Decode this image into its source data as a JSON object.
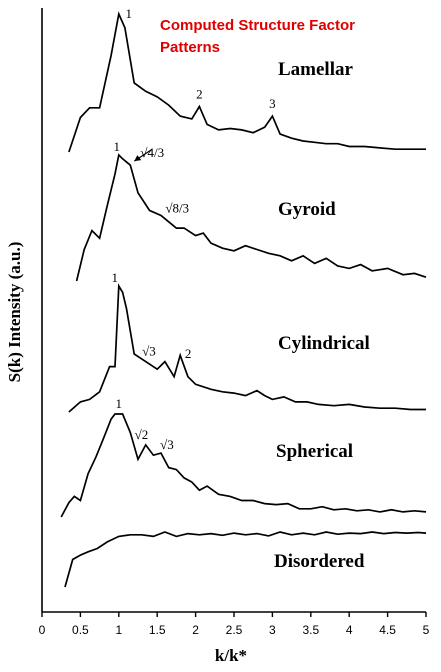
{
  "chart_data": {
    "type": "line",
    "title_lines": [
      "Computed Structure Factor",
      "Patterns"
    ],
    "title_color": "#e00000",
    "xlabel": "k/k*",
    "ylabel": "S(k) Intensity (a.u.)",
    "xlim": [
      0,
      5
    ],
    "x_ticks": [
      "0",
      "0.5",
      "1",
      "1.5",
      "2",
      "2.5",
      "3",
      "3.5",
      "4",
      "4.5",
      "5"
    ],
    "line_color": "#000000",
    "series": [
      {
        "name": "Lamellar",
        "baseline_rank": 1,
        "x": [
          0.35,
          0.5,
          0.62,
          0.75,
          0.9,
          1.0,
          1.08,
          1.2,
          1.35,
          1.5,
          1.65,
          1.8,
          1.95,
          2.05,
          2.15,
          2.3,
          2.45,
          2.6,
          2.75,
          2.9,
          3.0,
          3.1,
          3.25,
          3.4,
          3.55,
          3.7,
          3.85,
          4.0,
          4.2,
          4.4,
          4.6,
          4.8,
          5.0
        ],
        "y": [
          0.0,
          0.25,
          0.32,
          0.32,
          0.7,
          1.0,
          0.9,
          0.5,
          0.44,
          0.4,
          0.34,
          0.26,
          0.24,
          0.33,
          0.2,
          0.16,
          0.17,
          0.16,
          0.14,
          0.18,
          0.26,
          0.13,
          0.1,
          0.08,
          0.07,
          0.06,
          0.06,
          0.04,
          0.04,
          0.03,
          0.02,
          0.02,
          0.02
        ],
        "peak_labels": [
          {
            "text": "1",
            "x": 1.0
          },
          {
            "text": "2",
            "x": 2.05
          },
          {
            "text": "3",
            "x": 3.0
          }
        ]
      },
      {
        "name": "Gyroid",
        "baseline_rank": 2,
        "x": [
          0.45,
          0.55,
          0.65,
          0.75,
          0.85,
          0.95,
          1.0,
          1.05,
          1.15,
          1.25,
          1.4,
          1.55,
          1.65,
          1.75,
          1.85,
          2.0,
          2.1,
          2.2,
          2.35,
          2.5,
          2.65,
          2.8,
          2.95,
          3.1,
          3.25,
          3.4,
          3.55,
          3.7,
          3.85,
          4.0,
          4.15,
          4.3,
          4.5,
          4.7,
          4.85,
          5.0
        ],
        "y": [
          0.0,
          0.25,
          0.4,
          0.34,
          0.6,
          0.85,
          1.0,
          0.97,
          0.92,
          0.7,
          0.56,
          0.52,
          0.47,
          0.42,
          0.42,
          0.36,
          0.38,
          0.3,
          0.26,
          0.24,
          0.28,
          0.25,
          0.22,
          0.2,
          0.16,
          0.2,
          0.14,
          0.18,
          0.12,
          0.1,
          0.13,
          0.08,
          0.1,
          0.05,
          0.06,
          0.03
        ],
        "peak_labels": [
          {
            "text": "1",
            "x": 1.0
          },
          {
            "text": "√4/3",
            "x": 1.15
          },
          {
            "text": "√8/3",
            "x": 1.63
          }
        ]
      },
      {
        "name": "Cylindrical",
        "baseline_rank": 3,
        "x": [
          0.35,
          0.5,
          0.62,
          0.75,
          0.88,
          0.95,
          1.0,
          1.05,
          1.1,
          1.2,
          1.35,
          1.5,
          1.6,
          1.72,
          1.8,
          1.9,
          2.0,
          2.2,
          2.35,
          2.5,
          2.65,
          2.8,
          2.9,
          3.0,
          3.15,
          3.3,
          3.45,
          3.6,
          3.8,
          4.0,
          4.2,
          4.4,
          4.6,
          4.8,
          5.0
        ],
        "y": [
          0.0,
          0.08,
          0.1,
          0.16,
          0.36,
          0.36,
          1.0,
          0.95,
          0.82,
          0.46,
          0.4,
          0.34,
          0.4,
          0.28,
          0.45,
          0.28,
          0.22,
          0.18,
          0.16,
          0.15,
          0.13,
          0.17,
          0.13,
          0.1,
          0.12,
          0.08,
          0.08,
          0.06,
          0.05,
          0.06,
          0.04,
          0.03,
          0.03,
          0.02,
          0.02
        ],
        "peak_labels": [
          {
            "text": "1",
            "x": 1.0
          },
          {
            "text": "√3",
            "x": 1.55
          },
          {
            "text": "2",
            "x": 1.85
          }
        ]
      },
      {
        "name": "Spherical",
        "baseline_rank": 4,
        "x": [
          0.25,
          0.35,
          0.42,
          0.5,
          0.6,
          0.7,
          0.8,
          0.9,
          0.95,
          1.05,
          1.15,
          1.25,
          1.35,
          1.45,
          1.55,
          1.65,
          1.75,
          1.85,
          1.95,
          2.05,
          2.15,
          2.3,
          2.45,
          2.6,
          2.75,
          2.9,
          3.05,
          3.2,
          3.35,
          3.5,
          3.65,
          3.8,
          3.95,
          4.1,
          4.25,
          4.4,
          4.55,
          4.7,
          4.85,
          5.0
        ],
        "y": [
          0.0,
          0.14,
          0.2,
          0.16,
          0.42,
          0.58,
          0.76,
          0.95,
          1.0,
          1.0,
          0.82,
          0.56,
          0.7,
          0.6,
          0.62,
          0.48,
          0.46,
          0.38,
          0.34,
          0.26,
          0.3,
          0.22,
          0.2,
          0.16,
          0.16,
          0.13,
          0.12,
          0.13,
          0.08,
          0.08,
          0.1,
          0.07,
          0.08,
          0.06,
          0.07,
          0.05,
          0.07,
          0.05,
          0.06,
          0.05
        ],
        "peak_labels": [
          {
            "text": "1",
            "x": 1.0
          },
          {
            "text": "√2",
            "x": 1.32
          },
          {
            "text": "√3",
            "x": 1.55
          }
        ]
      },
      {
        "name": "Disordered",
        "baseline_rank": 5,
        "x": [
          0.3,
          0.4,
          0.5,
          0.6,
          0.72,
          0.85,
          1.0,
          1.15,
          1.3,
          1.45,
          1.6,
          1.75,
          1.9,
          2.05,
          2.2,
          2.35,
          2.5,
          2.65,
          2.8,
          2.95,
          3.1,
          3.25,
          3.4,
          3.55,
          3.7,
          3.85,
          4.0,
          4.15,
          4.3,
          4.45,
          4.6,
          4.75,
          4.9,
          5.0
        ],
        "y": [
          0.0,
          0.5,
          0.58,
          0.64,
          0.7,
          0.82,
          0.92,
          0.95,
          0.95,
          0.92,
          1.0,
          0.92,
          0.97,
          0.95,
          0.97,
          0.94,
          0.98,
          0.95,
          0.97,
          0.93,
          1.0,
          0.95,
          0.98,
          0.95,
          1.0,
          0.96,
          0.98,
          0.97,
          1.0,
          0.97,
          0.99,
          0.98,
          0.99,
          0.98
        ],
        "peak_labels": []
      }
    ]
  }
}
